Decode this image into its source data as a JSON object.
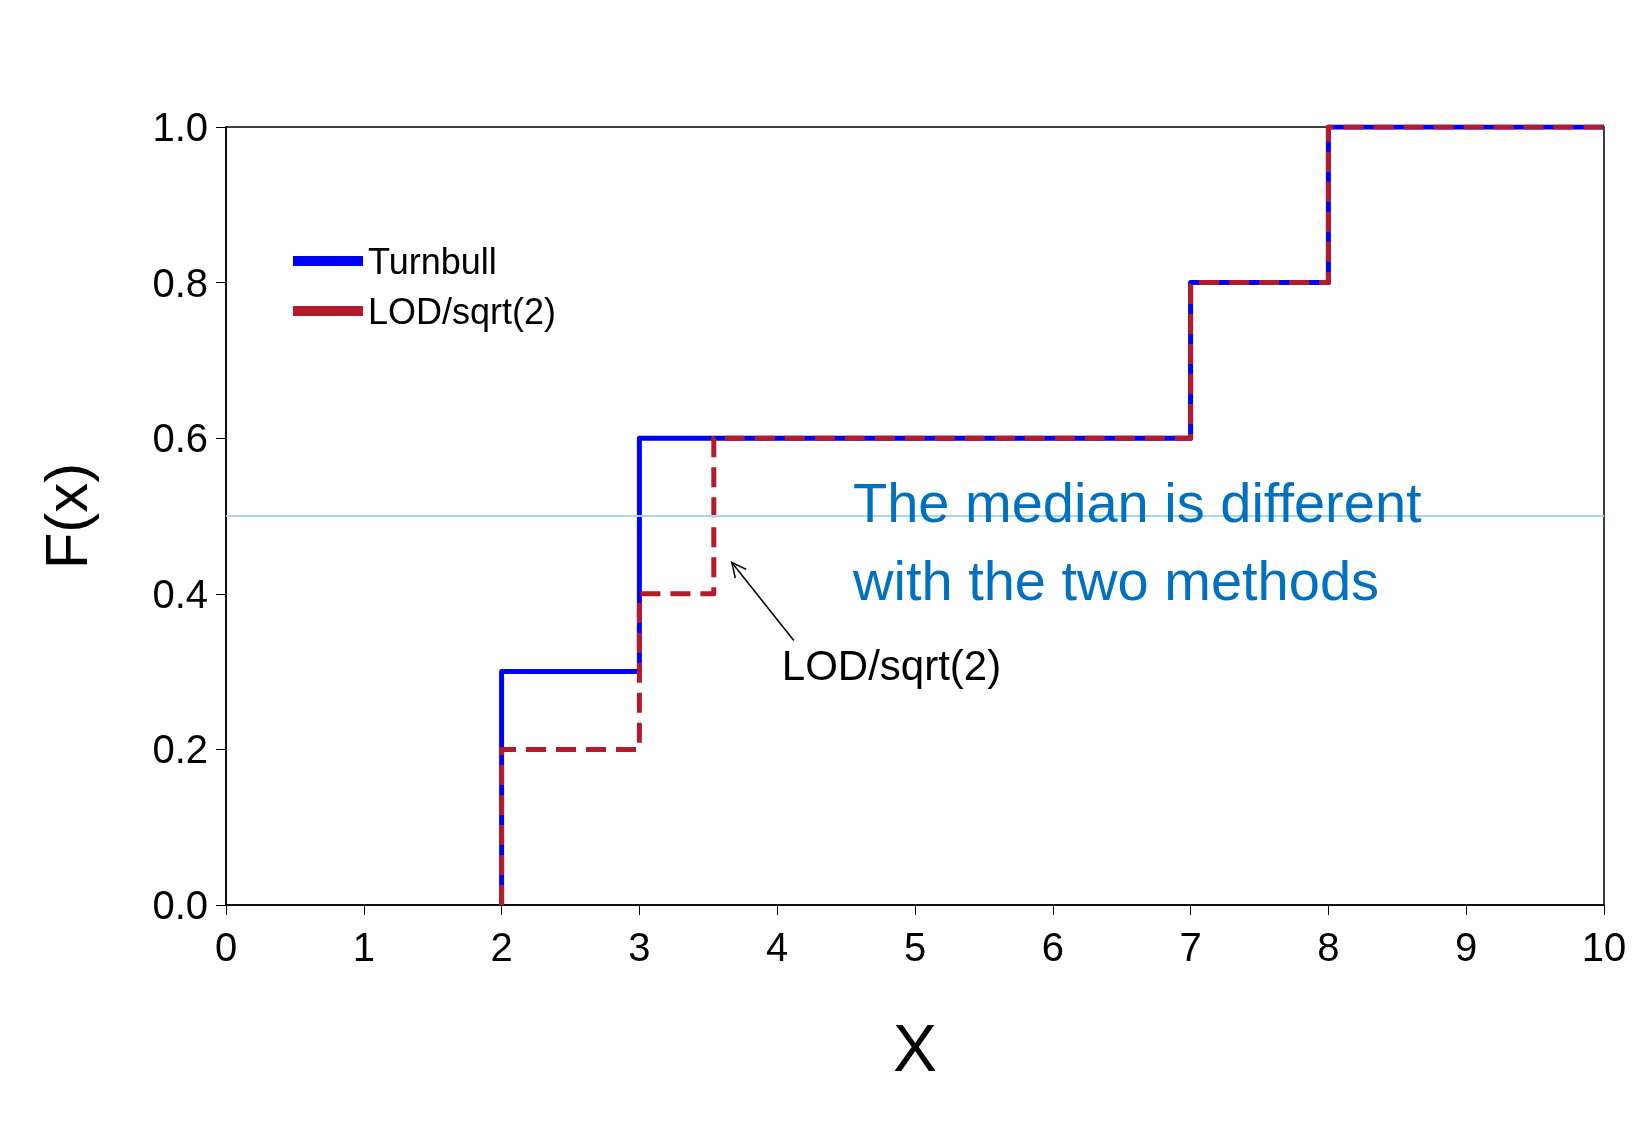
{
  "chart_data": {
    "type": "step",
    "xlabel": "X",
    "ylabel": "F(x)",
    "xlim": [
      0,
      10
    ],
    "xticks": [
      0,
      1,
      2,
      3,
      4,
      5,
      6,
      7,
      8,
      9,
      10
    ],
    "ylim": [
      0,
      1
    ],
    "yticks": [
      {
        "value": 0,
        "label": "0.0"
      },
      {
        "value": 0.2,
        "label": "0.2"
      },
      {
        "value": 0.4,
        "label": "0.4"
      },
      {
        "value": 0.6,
        "label": "0.6"
      },
      {
        "value": 0.8,
        "label": "0.8"
      },
      {
        "value": 1,
        "label": "1.0"
      }
    ],
    "series": [
      {
        "name": "Turnbull",
        "color": "#0000ff",
        "line_style": "solid",
        "x": [
          2,
          2,
          3,
          7,
          8,
          10
        ],
        "values": [
          0,
          0.3,
          0.6,
          0.8,
          1.0,
          1.0
        ]
      },
      {
        "name": "LOD/sqrt(2)",
        "color": "#b31b2c",
        "line_style": "dashed",
        "x": [
          2,
          2,
          3,
          3.54,
          7,
          8,
          10
        ],
        "values": [
          0,
          0.2,
          0.4,
          0.6,
          0.8,
          1.0,
          1.0
        ]
      }
    ],
    "ref_lines": [
      {
        "axis": "y",
        "value": 0.5,
        "color": "#a8d8e0"
      }
    ],
    "annotations": [
      "The median is different with the two methods",
      {
        "text": "LOD/sqrt(2)",
        "x": 3.54,
        "y": 0.43
      }
    ],
    "legend": "top left",
    "grid": false,
    "marker": "none"
  }
}
